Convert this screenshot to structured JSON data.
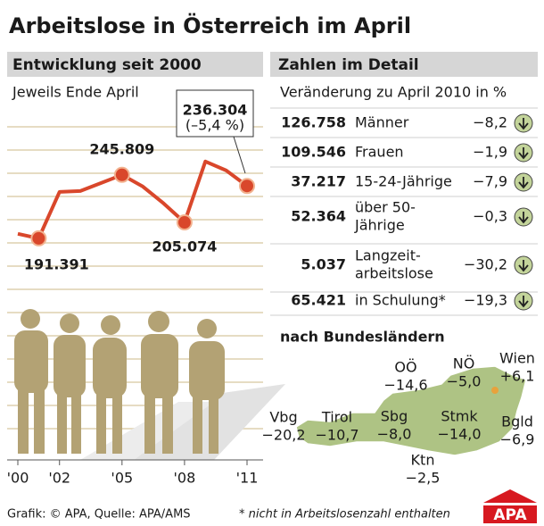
{
  "title": "Arbeitslose in Österreich im April",
  "chart_data": {
    "type": "line",
    "title": "Entwicklung seit 2000",
    "subtitle": "Jeweils Ende April",
    "x": [
      2000,
      2001,
      2002,
      2003,
      2004,
      2005,
      2006,
      2007,
      2008,
      2009,
      2010,
      2011
    ],
    "values": [
      195300,
      191391,
      231200,
      232000,
      238900,
      245809,
      235800,
      221300,
      205074,
      257300,
      249600,
      236304
    ],
    "value_labels": [
      null,
      "191.391",
      null,
      null,
      null,
      "245.809",
      null,
      null,
      "205.074",
      null,
      null,
      "236.304"
    ],
    "annotation": "(–5,4 %)",
    "color": "#d9472b",
    "xlim": [
      2000,
      2011
    ],
    "xticks": [
      {
        "value": 2000,
        "label": "'00"
      },
      {
        "value": 2002,
        "label": "'02"
      },
      {
        "value": 2005,
        "label": "'05"
      },
      {
        "value": 2008,
        "label": "'08"
      },
      {
        "value": 2011,
        "label": "'11"
      }
    ],
    "ylim": [
      0,
      300000
    ]
  },
  "detail": {
    "title": "Zahlen im Detail",
    "subtitle": "Veränderung zu April 2010 in %",
    "rows": [
      {
        "count": "126.758",
        "label": [
          "Männer"
        ],
        "change": "−8,2"
      },
      {
        "count": "109.546",
        "label": [
          "Frauen"
        ],
        "change": "−1,9"
      },
      {
        "count": "37.217",
        "label": [
          "15-24-Jährige"
        ],
        "change": "−7,9"
      },
      {
        "count": "52.364",
        "label": [
          "über 50-",
          "Jährige"
        ],
        "change": "−0,3"
      },
      {
        "count": "5.037",
        "label": [
          "Langzeit-",
          "arbeitslose"
        ],
        "change": "−30,2"
      },
      {
        "count": "65.421",
        "label": [
          "in Schulung*"
        ],
        "change": "−19,3"
      }
    ]
  },
  "regions": {
    "title": "nach Bundesländern",
    "items": [
      {
        "name": "OÖ",
        "change": "−14,6"
      },
      {
        "name": "NÖ",
        "change": "−5,0"
      },
      {
        "name": "Wien",
        "change": "+6,1"
      },
      {
        "name": "Vbg",
        "change": "−20,2"
      },
      {
        "name": "Tirol",
        "change": "−10,7"
      },
      {
        "name": "Sbg",
        "change": "−8,0"
      },
      {
        "name": "Stmk",
        "change": "−14,0"
      },
      {
        "name": "Bgld",
        "change": "−6,9"
      },
      {
        "name": "Ktn",
        "change": "−2,5"
      }
    ]
  },
  "footer": {
    "source": "Grafik: © APA, Quelle: APA/AMS",
    "note": "* nicht in Arbeitslosenzahl enthalten",
    "logo": "APA"
  }
}
